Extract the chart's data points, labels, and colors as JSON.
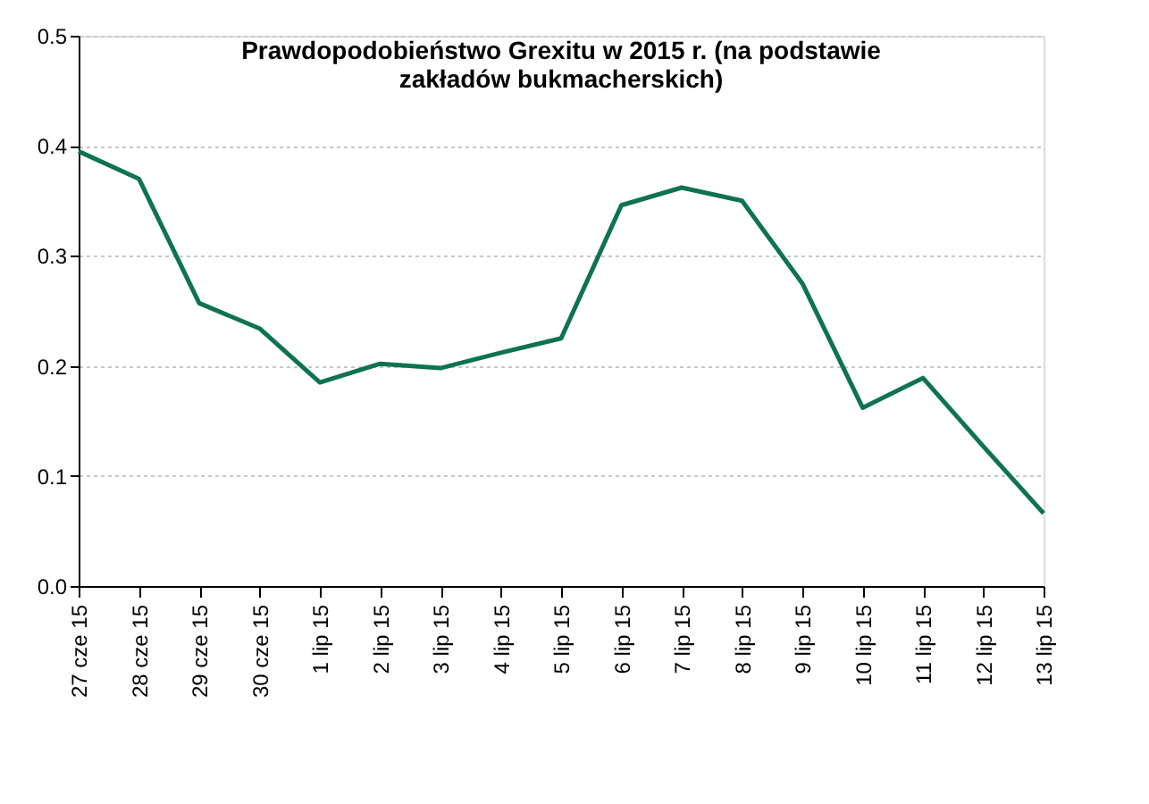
{
  "chart_data": {
    "type": "line",
    "title": "Prawdopodobieństwo Grexitu w 2015 r. (na podstawie zakładów bukmacherskich)",
    "categories": [
      "27 cze 15",
      "28 cze 15",
      "29 cze 15",
      "30 cze 15",
      "1 lip 15",
      "2 lip 15",
      "3 lip 15",
      "4 lip 15",
      "5 lip 15",
      "6 lip 15",
      "7 lip 15",
      "8 lip 15",
      "9 lip 15",
      "10 lip 15",
      "11 lip 15",
      "12 lip 15",
      "13 lip 15"
    ],
    "series": [
      {
        "color": "#0e7350",
        "values": [
          0.395,
          0.37,
          0.257,
          0.234,
          0.185,
          0.202,
          0.198,
          0.212,
          0.225,
          0.346,
          0.362,
          0.35,
          0.275,
          0.162,
          0.189,
          0.127,
          0.066
        ]
      }
    ],
    "ylim": [
      0,
      0.5
    ],
    "yticks": [
      {
        "value": 0,
        "label": "0.0"
      },
      {
        "value": 0.1,
        "label": "0.1"
      },
      {
        "value": 0.2,
        "label": "0.2"
      },
      {
        "value": 0.3,
        "label": "0.3"
      },
      {
        "value": 0.4,
        "label": "0.4"
      },
      {
        "value": 0.5,
        "label": "0.5"
      }
    ],
    "grid": "y",
    "legend": false,
    "marker": "none",
    "line_style": "solid"
  }
}
